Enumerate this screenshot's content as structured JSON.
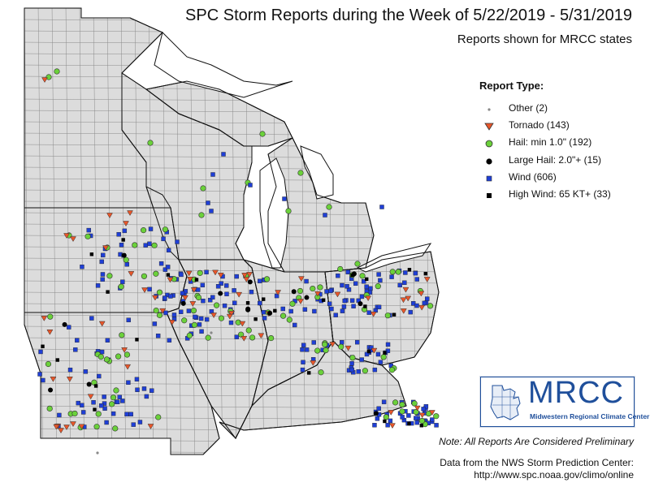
{
  "header": {
    "title": "SPC Storm Reports during the Week of 5/22/2019 - 5/31/2019",
    "subtitle": "Reports shown for MRCC states"
  },
  "legend": {
    "heading": "Report Type:",
    "items": [
      {
        "label": "Other (2)",
        "symbol": "small-dot",
        "color": "#888888"
      },
      {
        "label": "Tornado (143)",
        "symbol": "triangle-down",
        "color": "#e8562a"
      },
      {
        "label": "Hail: min 1.0\" (192)",
        "symbol": "circle",
        "color": "#6bd13b"
      },
      {
        "label": "Large Hail: 2.0\"+ (15)",
        "symbol": "circle",
        "color": "#000000"
      },
      {
        "label": "Wind (606)",
        "symbol": "square",
        "color": "#1f3fd6"
      },
      {
        "label": "High Wind: 65 KT+ (33)",
        "symbol": "square",
        "color": "#000000"
      }
    ]
  },
  "logo": {
    "text": "MRCC",
    "subtext": "Midwestern Regional Climate Center",
    "color": "#1f4f9b"
  },
  "footer": {
    "note": "Note: All Reports Are Considered Preliminary",
    "source_line1": "Data from the NWS Storm Prediction Center:",
    "source_line2": "http://www.spc.noaa.gov/climo/online"
  },
  "colors": {
    "land": "#dcdcdc",
    "lake": "#ffffff",
    "county_line": "#8a8a8a",
    "state_line": "#111111"
  }
}
